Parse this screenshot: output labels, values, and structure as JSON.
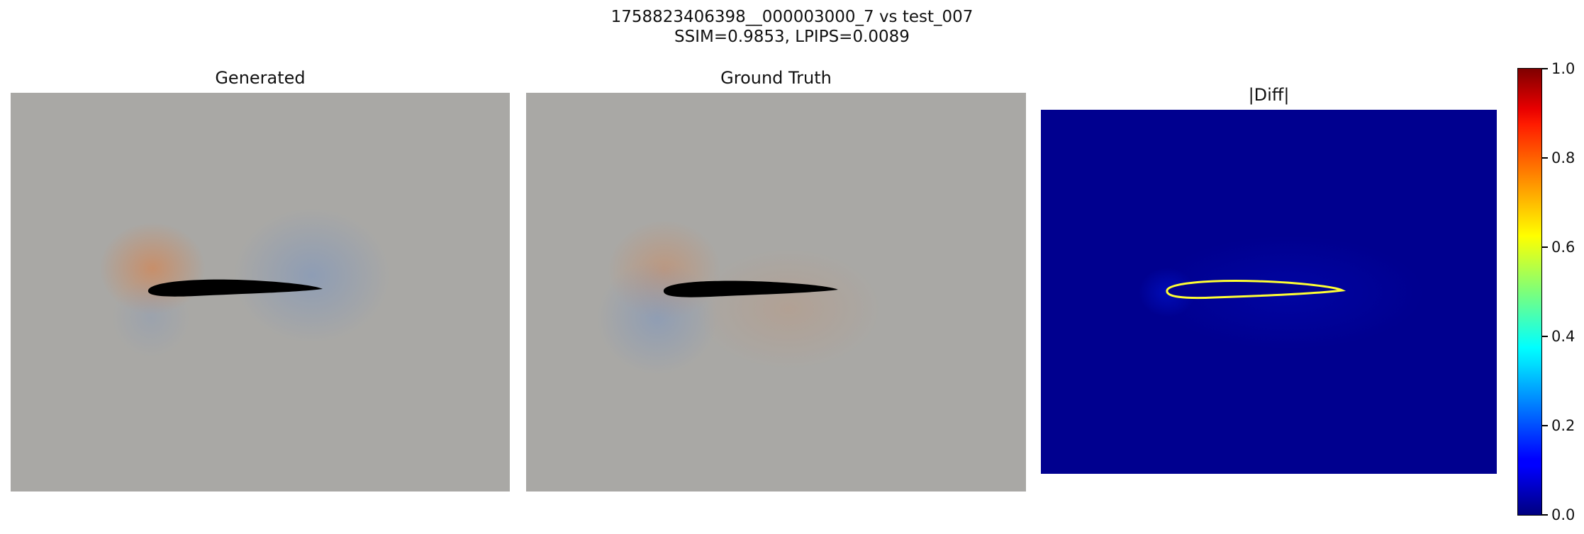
{
  "figure": {
    "title_line1": "1758823406398__000003000_7 vs test_007",
    "title_line2": "SSIM=0.9853, LPIPS=0.0089"
  },
  "panels": [
    {
      "title": "Generated",
      "kind": "flow-field",
      "background": "#a9a8a5"
    },
    {
      "title": "Ground Truth",
      "kind": "flow-field",
      "background": "#a9a8a5"
    },
    {
      "title": "|Diff|",
      "kind": "abs-difference",
      "background": "#00008f"
    }
  ],
  "colorbar": {
    "colormap": "jet",
    "range": [
      0.0,
      1.0
    ],
    "ticks": [
      "0.0",
      "0.2",
      "0.4",
      "0.6",
      "0.8",
      "1.0"
    ]
  },
  "colors": {
    "airfoil": "#000000",
    "diff_outline": "#ffff33",
    "warm_tint": "#e07a3a",
    "cool_tint": "#6d8fc7"
  }
}
